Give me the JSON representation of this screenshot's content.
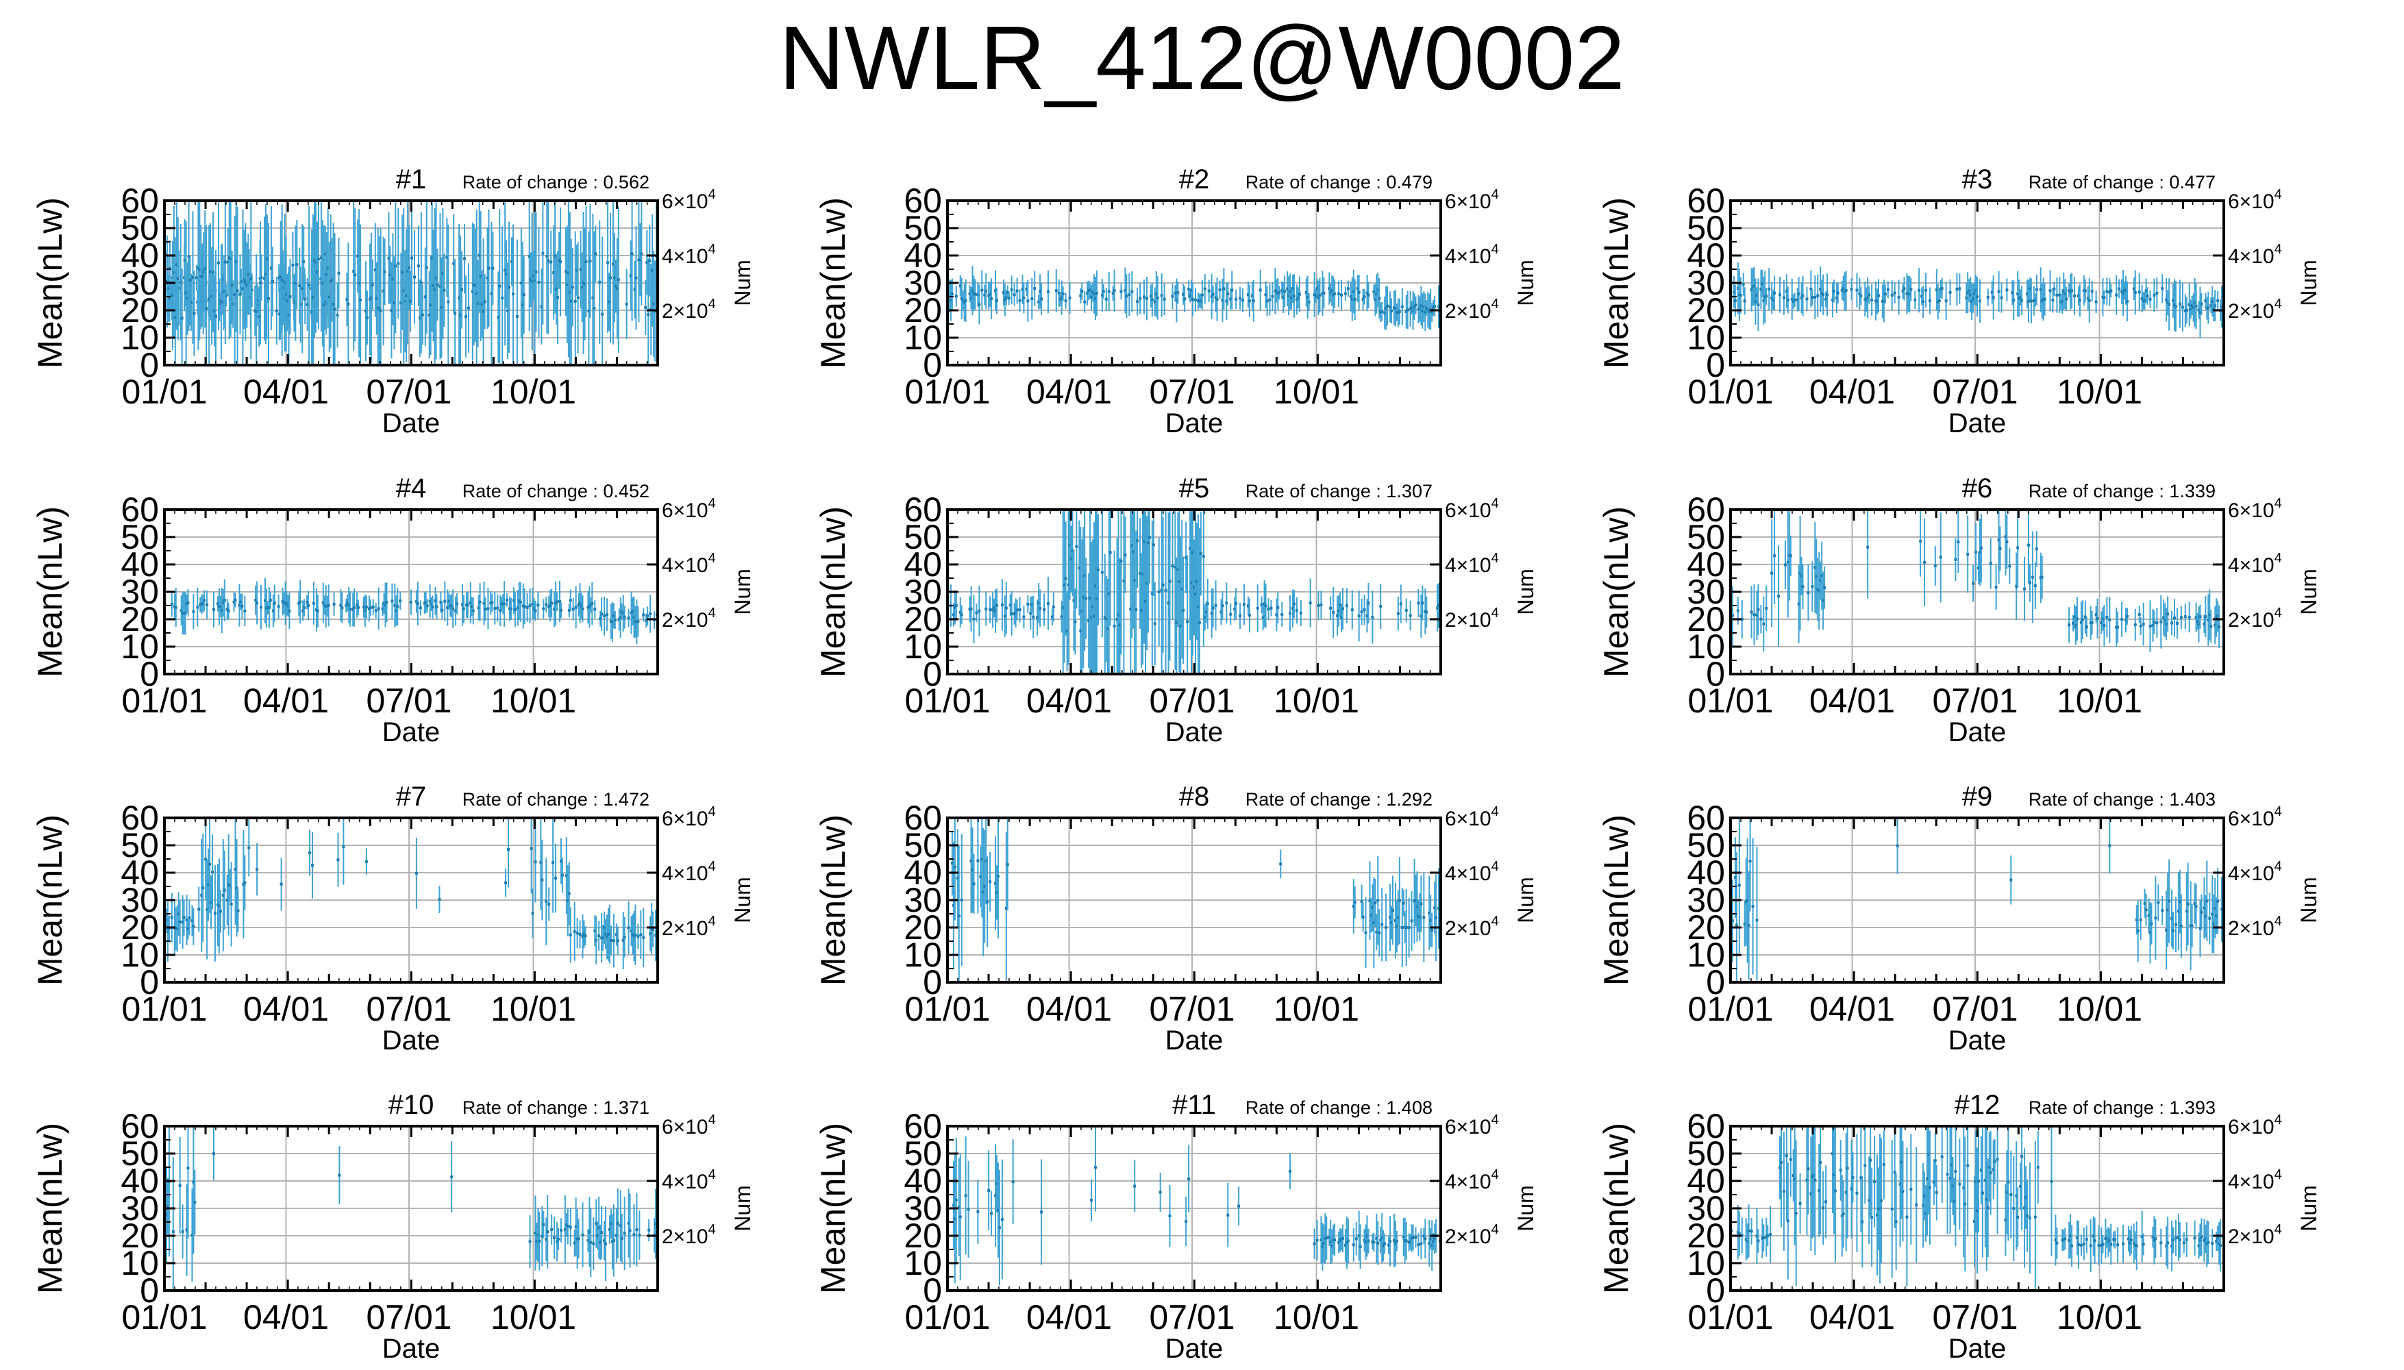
{
  "title": "NWLR_412@W0002",
  "colors": {
    "data": "#3fa3d3",
    "axis": "#000000",
    "grid": "#b4b4b4"
  },
  "shared_axes": {
    "ylabel": "Mean(nLw)",
    "y2label": "Num",
    "xlabel": "Date",
    "ylim": [
      0,
      60
    ],
    "yticks": [
      "0",
      "10",
      "20",
      "30",
      "40",
      "50",
      "60"
    ],
    "xlim": [
      "01/01",
      "12/31"
    ],
    "xticks": [
      "01/01",
      "04/01",
      "07/01",
      "10/01"
    ],
    "y2lim": [
      0,
      60000
    ],
    "y2ticks": [
      {
        "mant": "2×10",
        "exp": "4",
        "value": 20000
      },
      {
        "mant": "4×10",
        "exp": "4",
        "value": 40000
      },
      {
        "mant": "6×10",
        "exp": "4",
        "value": 60000
      }
    ]
  },
  "chart_data": [
    {
      "type": "scatter",
      "panel": "#1",
      "rate_label": "Rate of change : 0.562",
      "ylim": [
        0,
        60
      ],
      "segments": [
        [
          0,
          30,
          0.25,
          22,
          29,
          7
        ],
        [
          0.25,
          120,
          0.53,
          22,
          32,
          10
        ],
        [
          0.53,
          365,
          0.7,
          17,
          41,
          22
        ]
      ]
    },
    {
      "type": "scatter",
      "panel": "#2",
      "rate_label": "Rate of change : 0.479",
      "ylim": [
        0,
        60
      ],
      "segments": [
        [
          0,
          30,
          0.5,
          22,
          29,
          7
        ],
        [
          30,
          320,
          0.55,
          23,
          28,
          6
        ],
        [
          320,
          365,
          0.7,
          19,
          22,
          6
        ]
      ]
    },
    {
      "type": "scatter",
      "panel": "#3",
      "rate_label": "Rate of change : 0.477",
      "ylim": [
        0,
        60
      ],
      "segments": [
        [
          0,
          30,
          0.5,
          22,
          30,
          7
        ],
        [
          30,
          320,
          0.55,
          23,
          28,
          6
        ],
        [
          320,
          365,
          0.7,
          19,
          24,
          7
        ]
      ]
    },
    {
      "type": "scatter",
      "panel": "#4",
      "rate_label": "Rate of change : 0.452",
      "ylim": [
        0,
        60
      ],
      "segments": [
        [
          0,
          30,
          0.5,
          22,
          27,
          6
        ],
        [
          30,
          320,
          0.55,
          23,
          27,
          6
        ],
        [
          320,
          365,
          0.7,
          19,
          23,
          6
        ]
      ]
    },
    {
      "type": "scatter",
      "panel": "#5",
      "rate_label": "Rate of change : 1.307",
      "ylim": [
        0,
        60
      ],
      "segments": [
        [
          0,
          85,
          0.35,
          20,
          26,
          7
        ],
        [
          85,
          190,
          0.7,
          15,
          50,
          30
        ],
        [
          190,
          365,
          0.35,
          20,
          26,
          7
        ]
      ]
    },
    {
      "type": "scatter",
      "panel": "#6",
      "rate_label": "Rate of change : 1.339",
      "ylim": [
        0,
        60
      ],
      "segments": [
        [
          0,
          30,
          0.35,
          18,
          25,
          8
        ],
        [
          30,
          70,
          0.6,
          25,
          45,
          15
        ],
        [
          70,
          165,
          0.05,
          30,
          50,
          15
        ],
        [
          165,
          250,
          0.3,
          30,
          52,
          12
        ],
        [
          250,
          365,
          0.45,
          17,
          22,
          7
        ]
      ]
    },
    {
      "type": "scatter",
      "panel": "#7",
      "rate_label": "Rate of change : 1.472",
      "ylim": [
        0,
        60
      ],
      "segments": [
        [
          0,
          25,
          0.6,
          18,
          25,
          8
        ],
        [
          25,
          60,
          0.7,
          25,
          45,
          15
        ],
        [
          60,
          270,
          0.04,
          30,
          50,
          10
        ],
        [
          270,
          300,
          0.6,
          25,
          50,
          15
        ],
        [
          300,
          365,
          0.6,
          15,
          20,
          8
        ]
      ]
    },
    {
      "type": "scatter",
      "panel": "#8",
      "rate_label": "Rate of change : 1.292",
      "ylim": [
        0,
        60
      ],
      "segments": [
        [
          0,
          45,
          0.5,
          20,
          45,
          20
        ],
        [
          45,
          300,
          0.02,
          30,
          50,
          10
        ],
        [
          300,
          365,
          0.55,
          18,
          30,
          12
        ]
      ]
    },
    {
      "type": "scatter",
      "panel": "#9",
      "rate_label": "Rate of change : 1.403",
      "ylim": [
        0,
        60
      ],
      "segments": [
        [
          0,
          20,
          0.5,
          20,
          45,
          20
        ],
        [
          20,
          300,
          0.01,
          30,
          50,
          10
        ],
        [
          300,
          365,
          0.55,
          18,
          30,
          12
        ]
      ]
    },
    {
      "type": "scatter",
      "panel": "#10",
      "rate_label": "Rate of change : 1.371",
      "ylim": [
        0,
        60
      ],
      "segments": [
        [
          0,
          25,
          0.5,
          20,
          45,
          20
        ],
        [
          25,
          270,
          0.01,
          30,
          50,
          10
        ],
        [
          270,
          365,
          0.55,
          17,
          25,
          10
        ]
      ]
    },
    {
      "type": "scatter",
      "panel": "#11",
      "rate_label": "Rate of change : 1.408",
      "ylim": [
        0,
        60
      ],
      "segments": [
        [
          0,
          50,
          0.45,
          20,
          40,
          18
        ],
        [
          50,
          270,
          0.06,
          25,
          45,
          15
        ],
        [
          270,
          365,
          0.55,
          16,
          20,
          7
        ]
      ]
    },
    {
      "type": "scatter",
      "panel": "#12",
      "rate_label": "Rate of change : 1.393",
      "ylim": [
        0,
        60
      ],
      "segments": [
        [
          0,
          30,
          0.5,
          18,
          22,
          8
        ],
        [
          30,
          240,
          0.5,
          25,
          50,
          20
        ],
        [
          240,
          365,
          0.55,
          16,
          20,
          7
        ]
      ]
    }
  ]
}
